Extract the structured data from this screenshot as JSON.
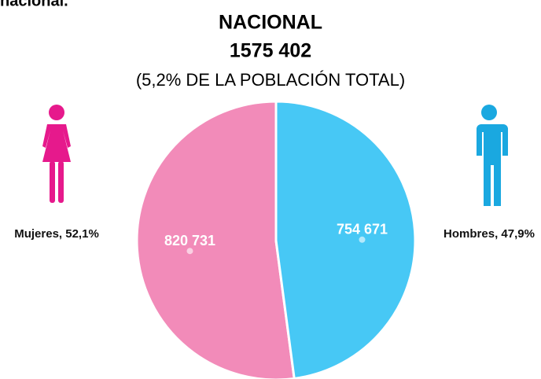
{
  "chart_data": {
    "type": "pie",
    "heading": "nacional.",
    "title": "NACIONAL",
    "subtitle": "1575 402",
    "note": "(5,2% DE LA POBLACIÓN TOTAL)",
    "categories": [
      "Mujeres, 52,1%",
      "Hombres, 47,9%"
    ],
    "values": [
      820731,
      754671
    ],
    "value_labels": [
      "820 731",
      "754 671"
    ],
    "colors": [
      "#f28bb9",
      "#47c8f5"
    ]
  }
}
